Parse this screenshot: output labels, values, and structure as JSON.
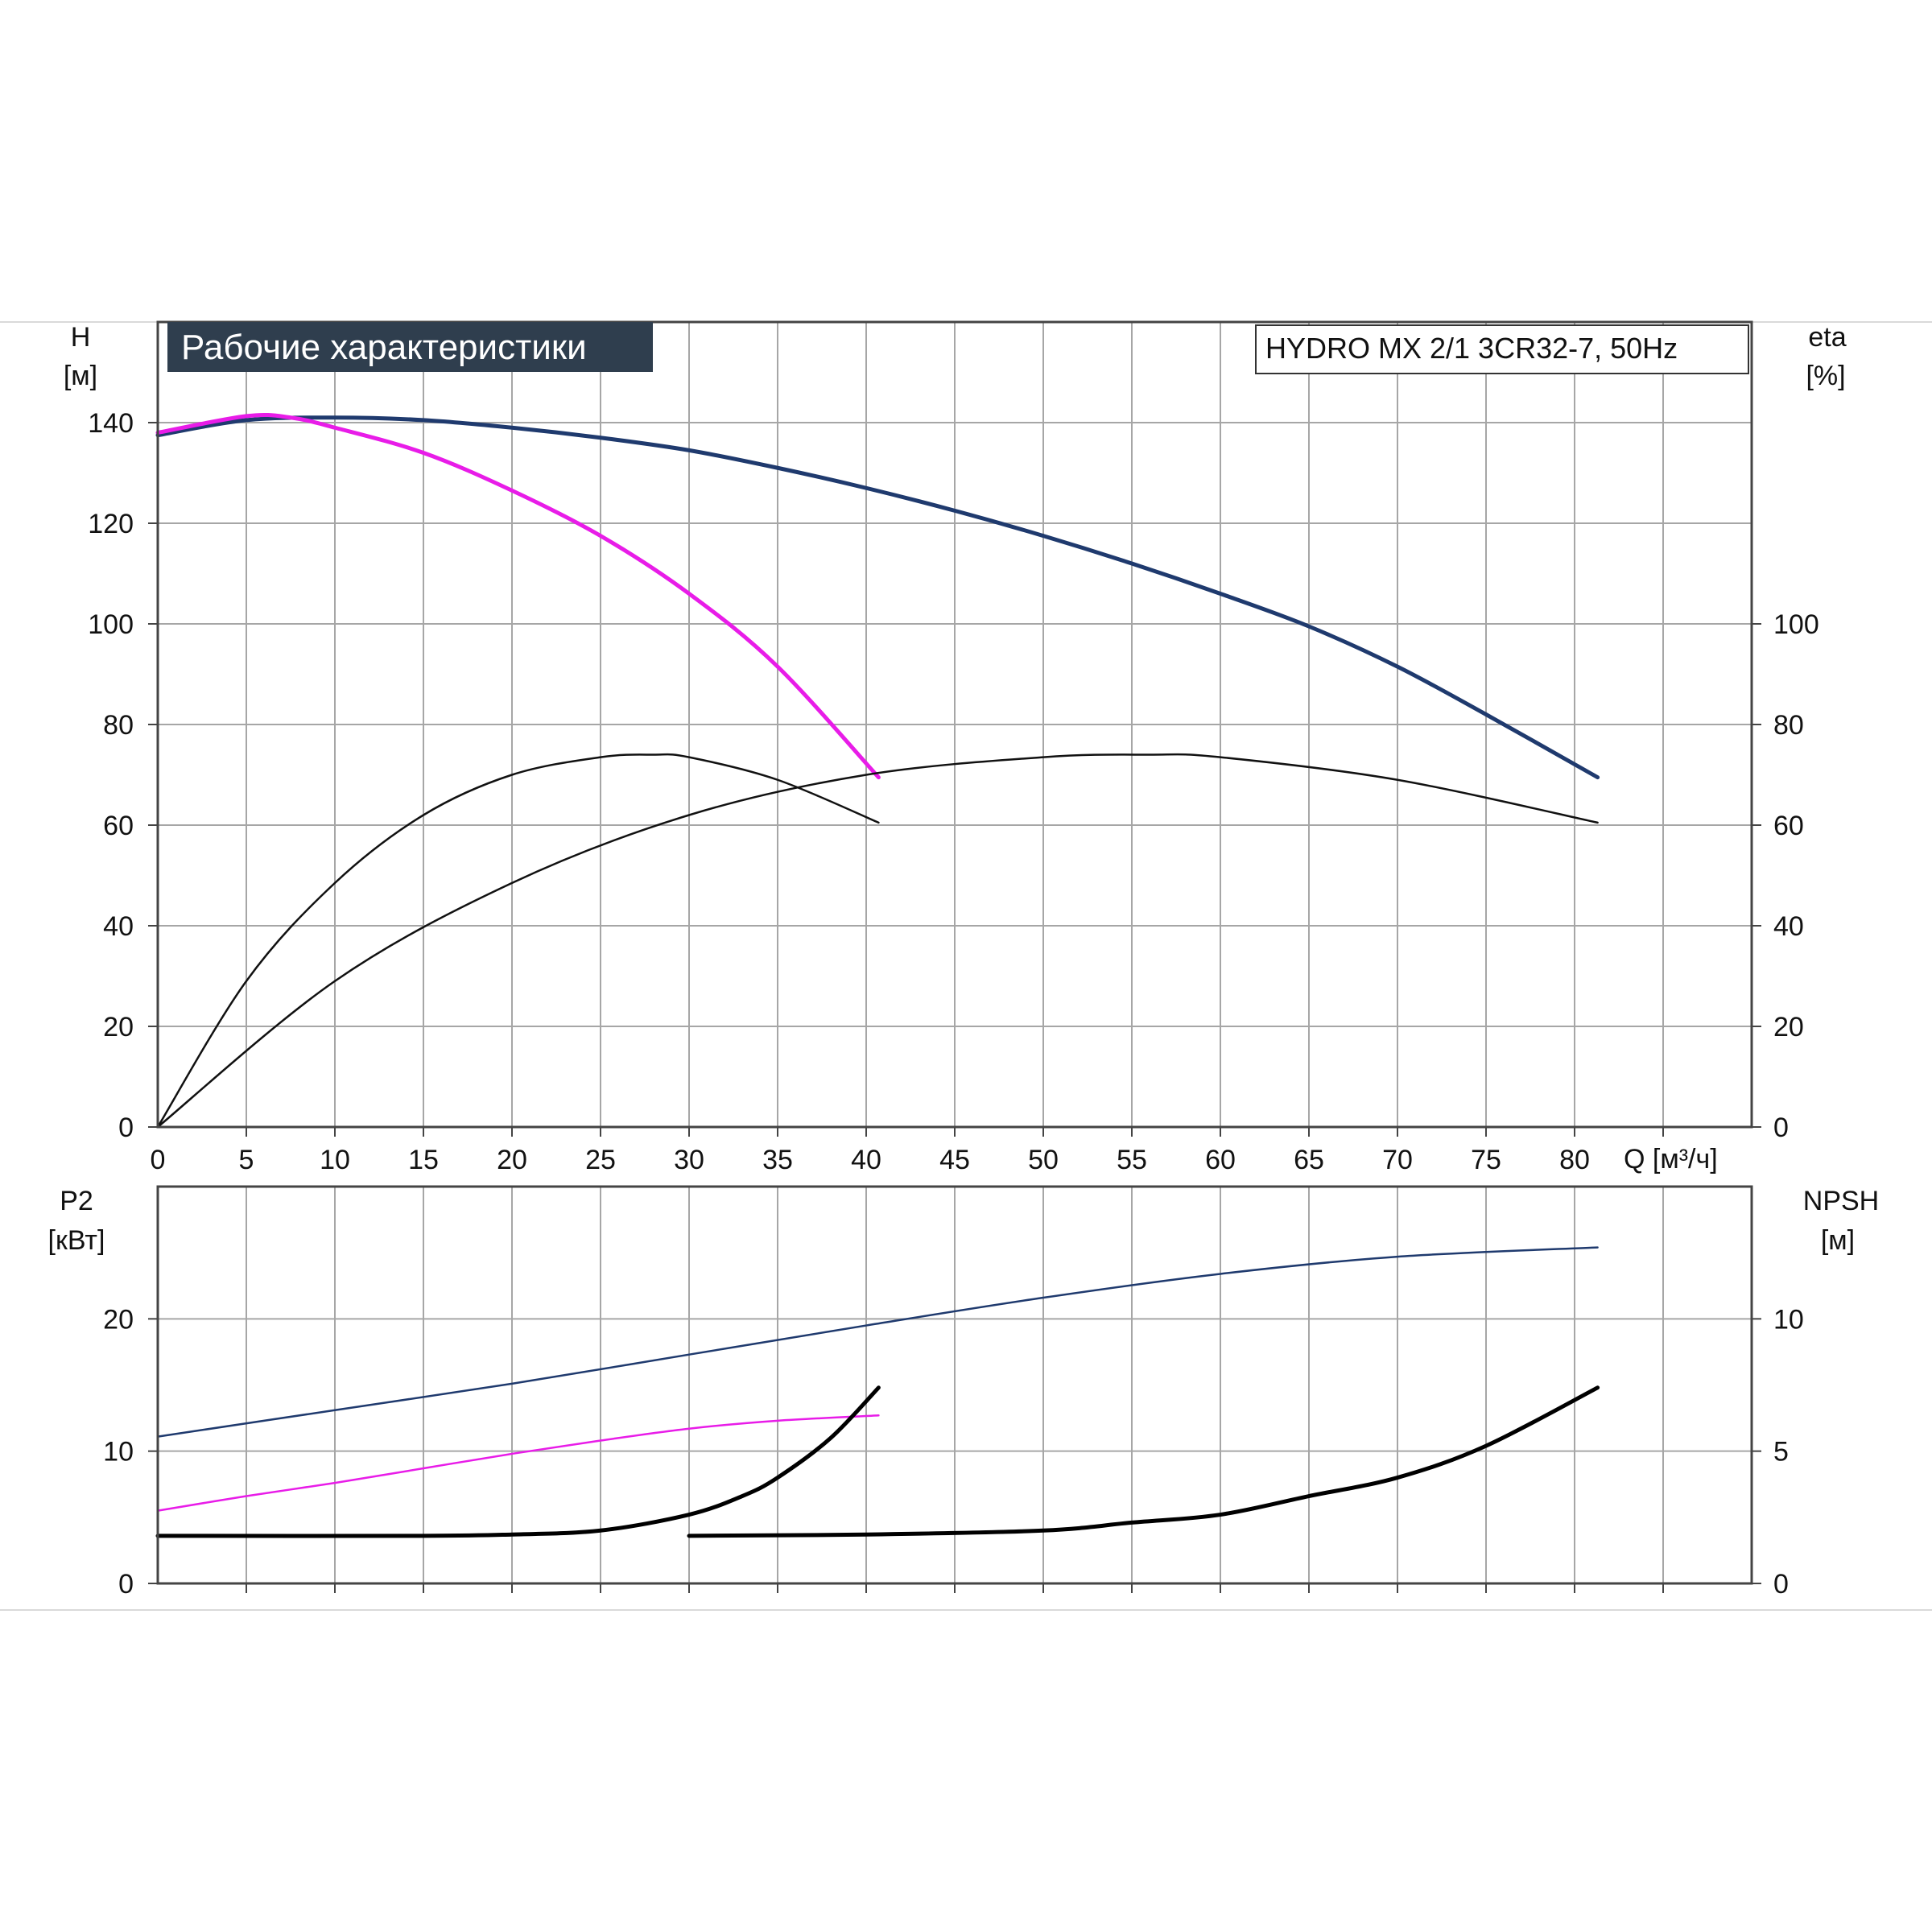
{
  "chart_data": [
    {
      "type": "line",
      "title": "Рабочие характеристики",
      "model": "HYDRO MX 2/1 3CR32-7, 50Hz",
      "xlabel": "Q [м³/ч]",
      "ylabel_name": "H",
      "ylabel_unit": "[м]",
      "y2label_name": "eta",
      "y2label_unit": "[%]",
      "xlim": [
        0,
        90
      ],
      "ylim": [
        0,
        160
      ],
      "y2lim": [
        0,
        160
      ],
      "xticks": [
        "0",
        "5",
        "10",
        "15",
        "20",
        "25",
        "30",
        "35",
        "40",
        "45",
        "50",
        "55",
        "60",
        "65",
        "70",
        "75",
        "80"
      ],
      "yticks": [
        "0",
        "20",
        "40",
        "60",
        "80",
        "100",
        "120",
        "140"
      ],
      "y2ticks": [
        "0",
        "20",
        "40",
        "60",
        "80",
        "100"
      ],
      "grid": true,
      "series": [
        {
          "role": "head-two-pumps",
          "color": "#1f3a6e",
          "width": 5,
          "axis": "left",
          "x": [
            0,
            5,
            10,
            15,
            20,
            25,
            30,
            35,
            40,
            45,
            50,
            55,
            60,
            65,
            70,
            75,
            81.3
          ],
          "y": [
            137.5,
            140.5,
            141,
            140.5,
            139,
            137,
            134.5,
            131,
            127,
            122.5,
            117.5,
            112,
            106,
            99.5,
            91.5,
            82,
            69.5
          ]
        },
        {
          "role": "head-one-pump",
          "color": "#e81ce8",
          "width": 5,
          "axis": "left",
          "x": [
            0,
            5,
            7.5,
            10,
            15,
            20,
            25,
            30,
            35,
            40.7
          ],
          "y": [
            138,
            141.3,
            141,
            139,
            134,
            126.5,
            117.5,
            106,
            91.5,
            69.5
          ]
        },
        {
          "role": "efficiency-one-pump",
          "color": "#111111",
          "width": 2.5,
          "axis": "right",
          "x": [
            0,
            5,
            10,
            15,
            20,
            25,
            28,
            30,
            35,
            40.7
          ],
          "y": [
            0,
            29,
            48.5,
            62,
            70,
            73.5,
            74,
            73.5,
            69,
            60.5
          ]
        },
        {
          "role": "efficiency-two-pumps",
          "color": "#111111",
          "width": 2.5,
          "axis": "right",
          "x": [
            0,
            10,
            20,
            30,
            40,
            50,
            56,
            60,
            70,
            81.3
          ],
          "y": [
            0,
            29,
            48.5,
            62,
            70,
            73.5,
            74,
            73.5,
            69,
            60.5
          ]
        }
      ]
    },
    {
      "type": "line",
      "ylabel_name": "P2",
      "ylabel_unit": "[кВт]",
      "y2label_name": "NPSH",
      "y2label_unit": "[м]",
      "xlim": [
        0,
        90
      ],
      "ylim": [
        0,
        30
      ],
      "y2lim": [
        0,
        15
      ],
      "yticks": [
        "0",
        "10",
        "20"
      ],
      "y2ticks": [
        "0",
        "5",
        "10"
      ],
      "grid": true,
      "series": [
        {
          "role": "power-two-pumps",
          "color": "#1f3a6e",
          "width": 2.5,
          "axis": "left",
          "x": [
            0,
            10,
            20,
            30,
            40,
            50,
            60,
            70,
            81.3
          ],
          "y": [
            11.1,
            13.1,
            15.1,
            17.3,
            19.5,
            21.6,
            23.4,
            24.7,
            25.4
          ]
        },
        {
          "role": "power-one-pump",
          "color": "#e81ce8",
          "width": 2.5,
          "axis": "left",
          "x": [
            0,
            5,
            10,
            15,
            20,
            25,
            30,
            35,
            40.7
          ],
          "y": [
            5.5,
            6.6,
            7.6,
            8.7,
            9.8,
            10.8,
            11.7,
            12.3,
            12.7
          ]
        },
        {
          "role": "npsh-one-pump",
          "color": "#000000",
          "width": 5,
          "axis": "right",
          "x": [
            0,
            15,
            20,
            25,
            30,
            33,
            35,
            38,
            40.7
          ],
          "y": [
            1.8,
            1.8,
            1.85,
            2.0,
            2.6,
            3.3,
            4.0,
            5.5,
            7.4
          ]
        },
        {
          "role": "npsh-two-pumps",
          "color": "#000000",
          "width": 5,
          "axis": "right",
          "x": [
            30,
            40,
            50,
            55,
            60,
            65,
            70,
            75,
            81.3
          ],
          "y": [
            1.8,
            1.85,
            2.0,
            2.3,
            2.6,
            3.3,
            4.0,
            5.2,
            7.4
          ]
        }
      ]
    }
  ]
}
